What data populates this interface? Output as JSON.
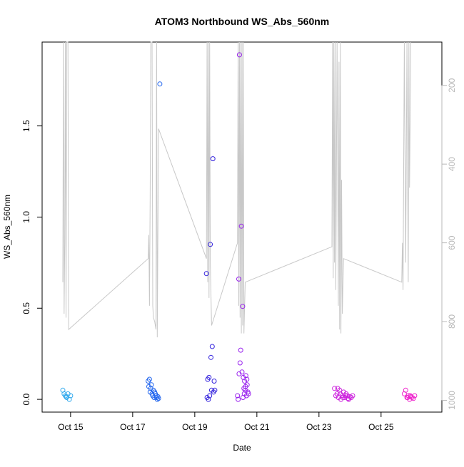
{
  "chart_data": {
    "type": "scatter",
    "title": "ATOM3 Northbound WS_Abs_560nm",
    "xlabel": "Date",
    "ylabel": "WS_Abs_560nm",
    "xlim": [
      "2016-10-14T02:00",
      "2016-10-26T23:00"
    ],
    "ylim": [
      -0.07,
      1.96
    ],
    "x_ticks": [
      {
        "x": "2016-10-15T00:00",
        "label": "Oct 15"
      },
      {
        "x": "2016-10-17T00:00",
        "label": "Oct 17"
      },
      {
        "x": "2016-10-19T00:00",
        "label": "Oct 19"
      },
      {
        "x": "2016-10-21T00:00",
        "label": "Oct 21"
      },
      {
        "x": "2016-10-23T00:00",
        "label": "Oct 23"
      },
      {
        "x": "2016-10-25T00:00",
        "label": "Oct 25"
      }
    ],
    "y_ticks": [
      0.0,
      0.5,
      1.0,
      1.5
    ],
    "y_tick_labels": [
      "0.0",
      "0.5",
      "1.0",
      "1.5"
    ],
    "right_axis": {
      "ticks": [
        200,
        400,
        600,
        800,
        1000
      ],
      "tick_labels": [
        "200",
        "400",
        "600",
        "800",
        "1000"
      ],
      "reversed": true,
      "lim": [
        90,
        1030
      ],
      "color": "#b8b8b8"
    },
    "grid": false,
    "legend": "none",
    "point_symbol": "open circle",
    "series": [
      {
        "color": "#33aaee",
        "points": [
          [
            "2016-10-14T18:00",
            0.05
          ],
          [
            "2016-10-14T19:00",
            0.03
          ],
          [
            "2016-10-14T20:00",
            0.02
          ],
          [
            "2016-10-14T21:00",
            0.01
          ],
          [
            "2016-10-14T22:00",
            0.03
          ],
          [
            "2016-10-14T23:00",
            0.0
          ],
          [
            "2016-10-15T00:00",
            0.02
          ],
          [
            "2016-10-14T20:30",
            0.015
          ]
        ]
      },
      {
        "color": "#2266ee",
        "points": [
          [
            "2016-10-17T12:00",
            0.1
          ],
          [
            "2016-10-17T12:30",
            0.07
          ],
          [
            "2016-10-17T13:00",
            0.11
          ],
          [
            "2016-10-17T13:30",
            0.04
          ],
          [
            "2016-10-17T14:00",
            0.06
          ],
          [
            "2016-10-17T14:30",
            0.08
          ],
          [
            "2016-10-17T15:00",
            0.03
          ],
          [
            "2016-10-17T15:30",
            0.02
          ],
          [
            "2016-10-17T16:00",
            0.05
          ],
          [
            "2016-10-17T16:30",
            0.01
          ],
          [
            "2016-10-17T17:00",
            0.04
          ],
          [
            "2016-10-17T17:30",
            0.03
          ],
          [
            "2016-10-17T18:00",
            0.02
          ],
          [
            "2016-10-17T18:30",
            0.01
          ],
          [
            "2016-10-17T19:00",
            0.0
          ],
          [
            "2016-10-17T19:30",
            0.015
          ],
          [
            "2016-10-17T20:00",
            0.005
          ],
          [
            "2016-10-17T21:00",
            1.73
          ]
        ]
      },
      {
        "color": "#3322dd",
        "points": [
          [
            "2016-10-19T09:00",
            0.69
          ],
          [
            "2016-10-19T10:00",
            0.11
          ],
          [
            "2016-10-19T11:00",
            0.12
          ],
          [
            "2016-10-19T12:00",
            0.85
          ],
          [
            "2016-10-19T12:30",
            0.23
          ],
          [
            "2016-10-19T13:00",
            0.05
          ],
          [
            "2016-10-19T13:30",
            0.29
          ],
          [
            "2016-10-19T14:00",
            1.32
          ],
          [
            "2016-10-19T14:30",
            0.04
          ],
          [
            "2016-10-19T09:30",
            0.01
          ],
          [
            "2016-10-19T10:30",
            0.0
          ],
          [
            "2016-10-19T11:30",
            0.02
          ],
          [
            "2016-10-19T15:00",
            0.1
          ],
          [
            "2016-10-19T15:30",
            0.05
          ]
        ]
      },
      {
        "color": "#9922ee",
        "points": [
          [
            "2016-10-20T09:00",
            0.02
          ],
          [
            "2016-10-20T09:30",
            0.0
          ],
          [
            "2016-10-20T10:00",
            0.66
          ],
          [
            "2016-10-20T10:15",
            0.14
          ],
          [
            "2016-10-20T10:30",
            1.89
          ],
          [
            "2016-10-20T11:00",
            0.2
          ],
          [
            "2016-10-20T11:30",
            0.27
          ],
          [
            "2016-10-20T12:00",
            0.95
          ],
          [
            "2016-10-20T12:30",
            0.15
          ],
          [
            "2016-10-20T13:00",
            0.51
          ],
          [
            "2016-10-20T13:30",
            0.12
          ],
          [
            "2016-10-20T14:00",
            0.06
          ],
          [
            "2016-10-20T14:30",
            0.1
          ],
          [
            "2016-10-20T15:00",
            0.05
          ],
          [
            "2016-10-20T15:30",
            0.13
          ],
          [
            "2016-10-20T16:00",
            0.02
          ],
          [
            "2016-10-20T16:30",
            0.08
          ],
          [
            "2016-10-20T17:00",
            0.04
          ],
          [
            "2016-10-20T13:15",
            0.01
          ],
          [
            "2016-10-20T14:15",
            0.03
          ],
          [
            "2016-10-20T15:15",
            0.07
          ],
          [
            "2016-10-20T16:15",
            0.11
          ],
          [
            "2016-10-20T17:30",
            0.03
          ]
        ]
      },
      {
        "color": "#cc22dd",
        "points": [
          [
            "2016-10-23T12:00",
            0.06
          ],
          [
            "2016-10-23T13:00",
            0.02
          ],
          [
            "2016-10-23T14:00",
            0.03
          ],
          [
            "2016-10-23T15:00",
            0.01
          ],
          [
            "2016-10-23T16:00",
            0.05
          ],
          [
            "2016-10-23T17:00",
            0.0
          ],
          [
            "2016-10-23T18:00",
            0.02
          ],
          [
            "2016-10-23T19:00",
            0.04
          ],
          [
            "2016-10-23T20:00",
            0.01
          ],
          [
            "2016-10-23T21:00",
            0.03
          ],
          [
            "2016-10-23T22:00",
            0.02
          ],
          [
            "2016-10-23T23:00",
            0.0
          ],
          [
            "2016-10-24T00:00",
            0.015
          ],
          [
            "2016-10-24T01:00",
            0.01
          ],
          [
            "2016-10-23T14:30",
            0.06
          ],
          [
            "2016-10-23T16:30",
            0.03
          ],
          [
            "2016-10-23T18:30",
            0.01
          ],
          [
            "2016-10-23T20:30",
            0.02
          ],
          [
            "2016-10-23T22:30",
            0.005
          ],
          [
            "2016-10-24T02:00",
            0.02
          ]
        ]
      },
      {
        "color": "#ee22cc",
        "points": [
          [
            "2016-10-25T18:00",
            0.03
          ],
          [
            "2016-10-25T19:00",
            0.05
          ],
          [
            "2016-10-25T20:00",
            0.01
          ],
          [
            "2016-10-25T21:00",
            0.02
          ],
          [
            "2016-10-25T22:00",
            0.0
          ],
          [
            "2016-10-25T23:00",
            0.015
          ],
          [
            "2016-10-26T00:00",
            0.01
          ],
          [
            "2016-10-26T01:00",
            0.005
          ],
          [
            "2016-10-26T02:00",
            0.02
          ],
          [
            "2016-10-25T20:30",
            0.01
          ],
          [
            "2016-10-25T22:30",
            0.02
          ]
        ]
      }
    ],
    "line_series": {
      "axis": "right",
      "color": "#c8c8c8",
      "points": [
        [
          "2016-10-14T18:00",
          700
        ],
        [
          "2016-10-14T18:30",
          80
        ],
        [
          "2016-10-14T19:00",
          780
        ],
        [
          "2016-10-14T19:30",
          600
        ],
        [
          "2016-10-14T20:00",
          80
        ],
        [
          "2016-10-14T20:30",
          790
        ],
        [
          "2016-10-14T21:00",
          80
        ],
        [
          "2016-10-14T22:00",
          80
        ],
        [
          "2016-10-14T22:30",
          820
        ],
        [
          "2016-10-17T12:00",
          640
        ],
        [
          "2016-10-17T12:30",
          580
        ],
        [
          "2016-10-17T13:00",
          760
        ],
        [
          "2016-10-17T13:30",
          500
        ],
        [
          "2016-10-17T14:00",
          80
        ],
        [
          "2016-10-17T14:30",
          80
        ],
        [
          "2016-10-17T15:00",
          80
        ],
        [
          "2016-10-17T15:30",
          760
        ],
        [
          "2016-10-17T16:00",
          790
        ],
        [
          "2016-10-17T17:00",
          800
        ],
        [
          "2016-10-17T18:00",
          820
        ],
        [
          "2016-10-17T18:30",
          80
        ],
        [
          "2016-10-17T19:00",
          840
        ],
        [
          "2016-10-17T20:00",
          310
        ],
        [
          "2016-10-19T09:00",
          640
        ],
        [
          "2016-10-19T09:30",
          80
        ],
        [
          "2016-10-19T10:00",
          700
        ],
        [
          "2016-10-19T10:30",
          80
        ],
        [
          "2016-10-19T11:00",
          740
        ],
        [
          "2016-10-19T11:30",
          80
        ],
        [
          "2016-10-19T12:00",
          650
        ],
        [
          "2016-10-19T13:00",
          810
        ],
        [
          "2016-10-20T09:00",
          600
        ],
        [
          "2016-10-20T09:30",
          80
        ],
        [
          "2016-10-20T10:00",
          760
        ],
        [
          "2016-10-20T10:30",
          80
        ],
        [
          "2016-10-20T11:00",
          790
        ],
        [
          "2016-10-20T11:30",
          80
        ],
        [
          "2016-10-20T12:00",
          830
        ],
        [
          "2016-10-20T12:30",
          80
        ],
        [
          "2016-10-20T13:00",
          810
        ],
        [
          "2016-10-20T13:30",
          80
        ],
        [
          "2016-10-20T14:00",
          830
        ],
        [
          "2016-10-20T15:00",
          700
        ],
        [
          "2016-10-23T10:00",
          610
        ],
        [
          "2016-10-23T10:30",
          80
        ],
        [
          "2016-10-23T11:00",
          690
        ],
        [
          "2016-10-23T11:30",
          80
        ],
        [
          "2016-10-23T12:00",
          650
        ],
        [
          "2016-10-23T12:30",
          80
        ],
        [
          "2016-10-23T13:00",
          720
        ],
        [
          "2016-10-23T14:00",
          80
        ],
        [
          "2016-10-23T15:00",
          760
        ],
        [
          "2016-10-23T15:30",
          140
        ],
        [
          "2016-10-23T16:00",
          820
        ],
        [
          "2016-10-23T16:30",
          80
        ],
        [
          "2016-10-23T17:00",
          830
        ],
        [
          "2016-10-23T17:30",
          440
        ],
        [
          "2016-10-23T18:00",
          780
        ],
        [
          "2016-10-23T19:00",
          640
        ],
        [
          "2016-10-25T16:00",
          700
        ],
        [
          "2016-10-25T16:30",
          600
        ],
        [
          "2016-10-25T17:00",
          720
        ],
        [
          "2016-10-25T18:00",
          80
        ],
        [
          "2016-10-25T19:00",
          650
        ],
        [
          "2016-10-25T20:00",
          80
        ],
        [
          "2016-10-25T21:00",
          700
        ],
        [
          "2016-10-25T21:30",
          80
        ],
        [
          "2016-10-25T22:00",
          460
        ],
        [
          "2016-10-25T23:00",
          80
        ]
      ]
    }
  }
}
